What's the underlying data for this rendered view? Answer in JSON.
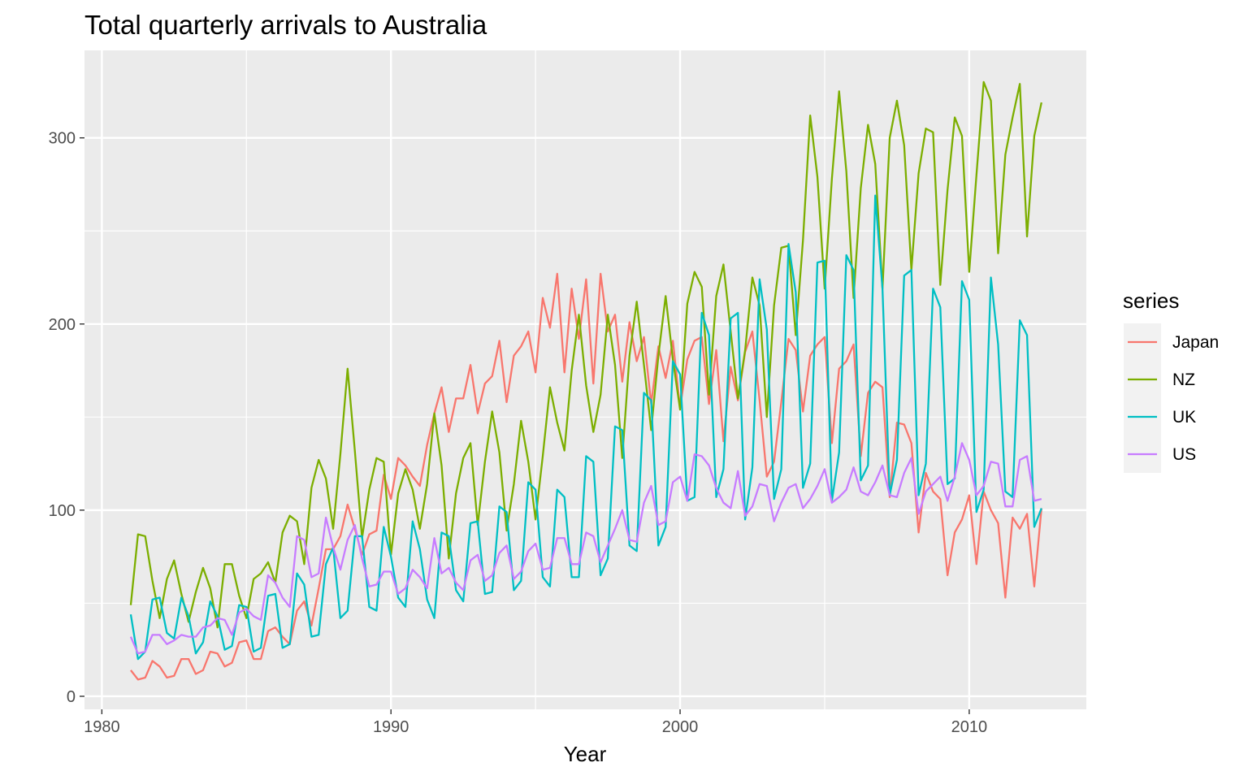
{
  "chart_data": {
    "type": "line",
    "title": "Total quarterly arrivals to Australia",
    "xlabel": "Year",
    "ylabel": "",
    "xlim": [
      1979.4,
      2014.05
    ],
    "ylim": [
      -7,
      347
    ],
    "x_ticks": [
      1980,
      1990,
      2000,
      2010
    ],
    "y_ticks": [
      0,
      100,
      200,
      300
    ],
    "grid": true,
    "legend": {
      "title": "series",
      "position": "right"
    },
    "x_start": 1981.0,
    "x_step": 0.25,
    "series": [
      {
        "name": "Japan",
        "color": "#F8766D",
        "values": [
          14,
          9,
          10,
          19,
          16,
          10,
          11,
          20,
          20,
          12,
          14,
          24,
          23,
          16,
          18,
          29,
          30,
          20,
          20,
          35,
          37,
          32,
          28,
          46,
          51,
          38,
          58,
          79,
          79,
          86,
          103,
          90,
          76,
          87,
          89,
          119,
          106,
          128,
          124,
          118,
          113,
          135,
          152,
          166,
          142,
          160,
          160,
          178,
          152,
          168,
          172,
          191,
          158,
          183,
          188,
          196,
          174,
          214,
          198,
          227,
          174,
          219,
          192,
          224,
          168,
          227,
          196,
          205,
          169,
          201,
          180,
          193,
          157,
          188,
          171,
          191,
          155,
          181,
          191,
          193,
          157,
          186,
          137,
          177,
          159,
          185,
          196,
          159,
          118,
          126,
          158,
          192,
          186,
          153,
          183,
          189,
          193,
          136,
          176,
          180,
          189,
          129,
          163,
          169,
          166,
          107,
          147,
          146,
          136,
          88,
          120,
          110,
          106,
          65,
          88,
          95,
          108,
          71,
          110,
          100,
          93,
          53,
          96,
          90,
          98,
          59,
          101
        ]
      },
      {
        "name": "NZ",
        "color": "#7CAE00",
        "values": [
          49,
          87,
          86,
          62,
          42,
          63,
          73,
          55,
          40,
          56,
          69,
          58,
          37,
          71,
          71,
          54,
          42,
          63,
          66,
          72,
          61,
          88,
          97,
          94,
          71,
          112,
          127,
          117,
          90,
          130,
          176,
          132,
          85,
          111,
          128,
          126,
          76,
          109,
          122,
          111,
          90,
          114,
          152,
          124,
          74,
          109,
          128,
          136,
          92,
          126,
          153,
          131,
          89,
          114,
          148,
          126,
          95,
          129,
          166,
          147,
          132,
          175,
          205,
          167,
          142,
          162,
          205,
          178,
          128,
          183,
          212,
          178,
          143,
          183,
          215,
          181,
          154,
          211,
          228,
          220,
          162,
          215,
          232,
          196,
          160,
          186,
          225,
          210,
          150,
          210,
          241,
          242,
          194,
          245,
          312,
          279,
          219,
          278,
          325,
          282,
          214,
          273,
          307,
          286,
          219,
          300,
          320,
          296,
          229,
          281,
          305,
          303,
          221,
          272,
          311,
          301,
          228,
          280,
          330,
          320,
          238,
          291,
          311,
          329,
          247,
          301,
          319
        ]
      },
      {
        "name": "UK",
        "color": "#00BFC4",
        "values": [
          44,
          20,
          24,
          52,
          53,
          34,
          31,
          53,
          43,
          23,
          29,
          51,
          43,
          25,
          27,
          49,
          48,
          24,
          26,
          54,
          55,
          26,
          28,
          66,
          60,
          32,
          33,
          71,
          80,
          42,
          46,
          86,
          86,
          48,
          46,
          91,
          75,
          53,
          48,
          94,
          79,
          52,
          42,
          88,
          86,
          57,
          51,
          93,
          94,
          55,
          56,
          102,
          99,
          57,
          62,
          115,
          111,
          64,
          59,
          111,
          107,
          64,
          64,
          129,
          126,
          65,
          74,
          145,
          143,
          81,
          78,
          163,
          159,
          81,
          91,
          180,
          173,
          105,
          107,
          206,
          194,
          107,
          122,
          203,
          206,
          95,
          123,
          224,
          197,
          106,
          122,
          243,
          217,
          112,
          125,
          233,
          234,
          105,
          131,
          237,
          229,
          116,
          124,
          269,
          219,
          108,
          127,
          226,
          229,
          108,
          125,
          219,
          209,
          114,
          117,
          223,
          213,
          99,
          111,
          225,
          189,
          110,
          107,
          202,
          194,
          91,
          101
        ]
      },
      {
        "name": "US",
        "color": "#C77CFF",
        "values": [
          32,
          23,
          24,
          33,
          33,
          28,
          30,
          33,
          32,
          32,
          37,
          38,
          42,
          41,
          33,
          45,
          47,
          43,
          41,
          65,
          61,
          53,
          48,
          86,
          84,
          64,
          66,
          96,
          80,
          68,
          84,
          92,
          74,
          59,
          60,
          67,
          67,
          55,
          58,
          68,
          64,
          58,
          85,
          66,
          69,
          61,
          57,
          73,
          76,
          62,
          65,
          77,
          81,
          63,
          67,
          78,
          82,
          68,
          69,
          85,
          85,
          71,
          71,
          88,
          86,
          72,
          81,
          90,
          100,
          84,
          83,
          104,
          113,
          92,
          94,
          115,
          118,
          105,
          130,
          129,
          124,
          112,
          104,
          101,
          121,
          97,
          102,
          114,
          113,
          94,
          104,
          112,
          114,
          101,
          106,
          113,
          122,
          104,
          107,
          111,
          123,
          110,
          108,
          115,
          124,
          108,
          107,
          120,
          128,
          98,
          110,
          114,
          118,
          105,
          118,
          136,
          127,
          108,
          113,
          126,
          125,
          102,
          102,
          127,
          129,
          105,
          106
        ]
      }
    ]
  }
}
